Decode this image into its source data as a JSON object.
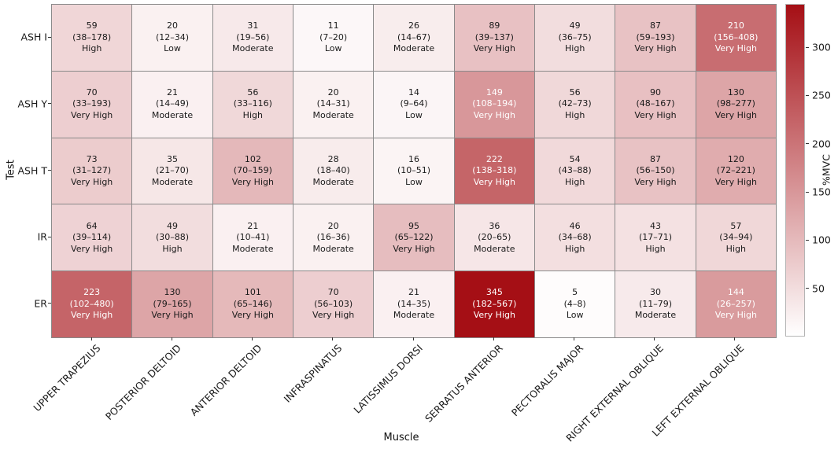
{
  "chart_data": {
    "type": "heatmap",
    "title": "",
    "xlabel": "Muscle",
    "ylabel": "Test",
    "columns": [
      "UPPER TRAPEZIUS",
      "POSTERIOR DELTOID",
      "ANTERIOR DELTOID",
      "INFRASPINATUS",
      "LATISSIMUS DORSI",
      "SERRATUS ANTERIOR",
      "PECTORALIS MAJOR",
      "RIGHT EXTERNAL OBLIQUE",
      "LEFT EXTERNAL OBLIQUE"
    ],
    "rows": [
      "ASH I",
      "ASH Y",
      "ASH T",
      "IR",
      "ER"
    ],
    "cells": [
      [
        {
          "value": 59,
          "range": "(38–178)",
          "level": "High"
        },
        {
          "value": 20,
          "range": "(12–34)",
          "level": "Low"
        },
        {
          "value": 31,
          "range": "(19–56)",
          "level": "Moderate"
        },
        {
          "value": 11,
          "range": "(7–20)",
          "level": "Low"
        },
        {
          "value": 26,
          "range": "(14–67)",
          "level": "Moderate"
        },
        {
          "value": 89,
          "range": "(39–137)",
          "level": "Very High"
        },
        {
          "value": 49,
          "range": "(36–75)",
          "level": "High"
        },
        {
          "value": 87,
          "range": "(59–193)",
          "level": "Very High"
        },
        {
          "value": 210,
          "range": "(156–408)",
          "level": "Very High"
        }
      ],
      [
        {
          "value": 70,
          "range": "(33–193)",
          "level": "Very High"
        },
        {
          "value": 21,
          "range": "(14–49)",
          "level": "Moderate"
        },
        {
          "value": 56,
          "range": "(33–116)",
          "level": "High"
        },
        {
          "value": 20,
          "range": "(14–31)",
          "level": "Moderate"
        },
        {
          "value": 14,
          "range": "(9–64)",
          "level": "Low"
        },
        {
          "value": 149,
          "range": "(108–194)",
          "level": "Very High"
        },
        {
          "value": 56,
          "range": "(42–73)",
          "level": "High"
        },
        {
          "value": 90,
          "range": "(48–167)",
          "level": "Very High"
        },
        {
          "value": 130,
          "range": "(98–277)",
          "level": "Very High"
        }
      ],
      [
        {
          "value": 73,
          "range": "(31–127)",
          "level": "Very High"
        },
        {
          "value": 35,
          "range": "(21–70)",
          "level": "Moderate"
        },
        {
          "value": 102,
          "range": "(70–159)",
          "level": "Very High"
        },
        {
          "value": 28,
          "range": "(18–40)",
          "level": "Moderate"
        },
        {
          "value": 16,
          "range": "(10–51)",
          "level": "Low"
        },
        {
          "value": 222,
          "range": "(138–318)",
          "level": "Very High"
        },
        {
          "value": 54,
          "range": "(43–88)",
          "level": "High"
        },
        {
          "value": 87,
          "range": "(56–150)",
          "level": "Very High"
        },
        {
          "value": 120,
          "range": "(72–221)",
          "level": "Very High"
        }
      ],
      [
        {
          "value": 64,
          "range": "(39–114)",
          "level": "Very High"
        },
        {
          "value": 49,
          "range": "(30–88)",
          "level": "High"
        },
        {
          "value": 21,
          "range": "(10–41)",
          "level": "Moderate"
        },
        {
          "value": 20,
          "range": "(16–36)",
          "level": "Moderate"
        },
        {
          "value": 95,
          "range": "(65–122)",
          "level": "Very High"
        },
        {
          "value": 36,
          "range": "(20–65)",
          "level": "Moderate"
        },
        {
          "value": 46,
          "range": "(34–68)",
          "level": "High"
        },
        {
          "value": 43,
          "range": "(17–71)",
          "level": "High"
        },
        {
          "value": 57,
          "range": "(34–94)",
          "level": "High"
        }
      ],
      [
        {
          "value": 223,
          "range": "(102–480)",
          "level": "Very High"
        },
        {
          "value": 130,
          "range": "(79–165)",
          "level": "Very High"
        },
        {
          "value": 101,
          "range": "(65–146)",
          "level": "Very High"
        },
        {
          "value": 70,
          "range": "(56–103)",
          "level": "Very High"
        },
        {
          "value": 21,
          "range": "(14–35)",
          "level": "Moderate"
        },
        {
          "value": 345,
          "range": "(182–567)",
          "level": "Very High"
        },
        {
          "value": 5,
          "range": "(4–8)",
          "level": "Low"
        },
        {
          "value": 30,
          "range": "(11–79)",
          "level": "Moderate"
        },
        {
          "value": 144,
          "range": "(26–257)",
          "level": "Very High"
        }
      ]
    ],
    "colorbar": {
      "label": "%MVC",
      "ticks": [
        50,
        100,
        150,
        200,
        250,
        300
      ],
      "vmin": 0,
      "vmax": 345,
      "color_low": "#ffffff",
      "color_high": "#a50f15"
    },
    "white_text_threshold": 140,
    "grid_line_color": "#8a8a8a",
    "dark_text_color": "#1a1a1a",
    "light_text_color": "#ffffff"
  }
}
